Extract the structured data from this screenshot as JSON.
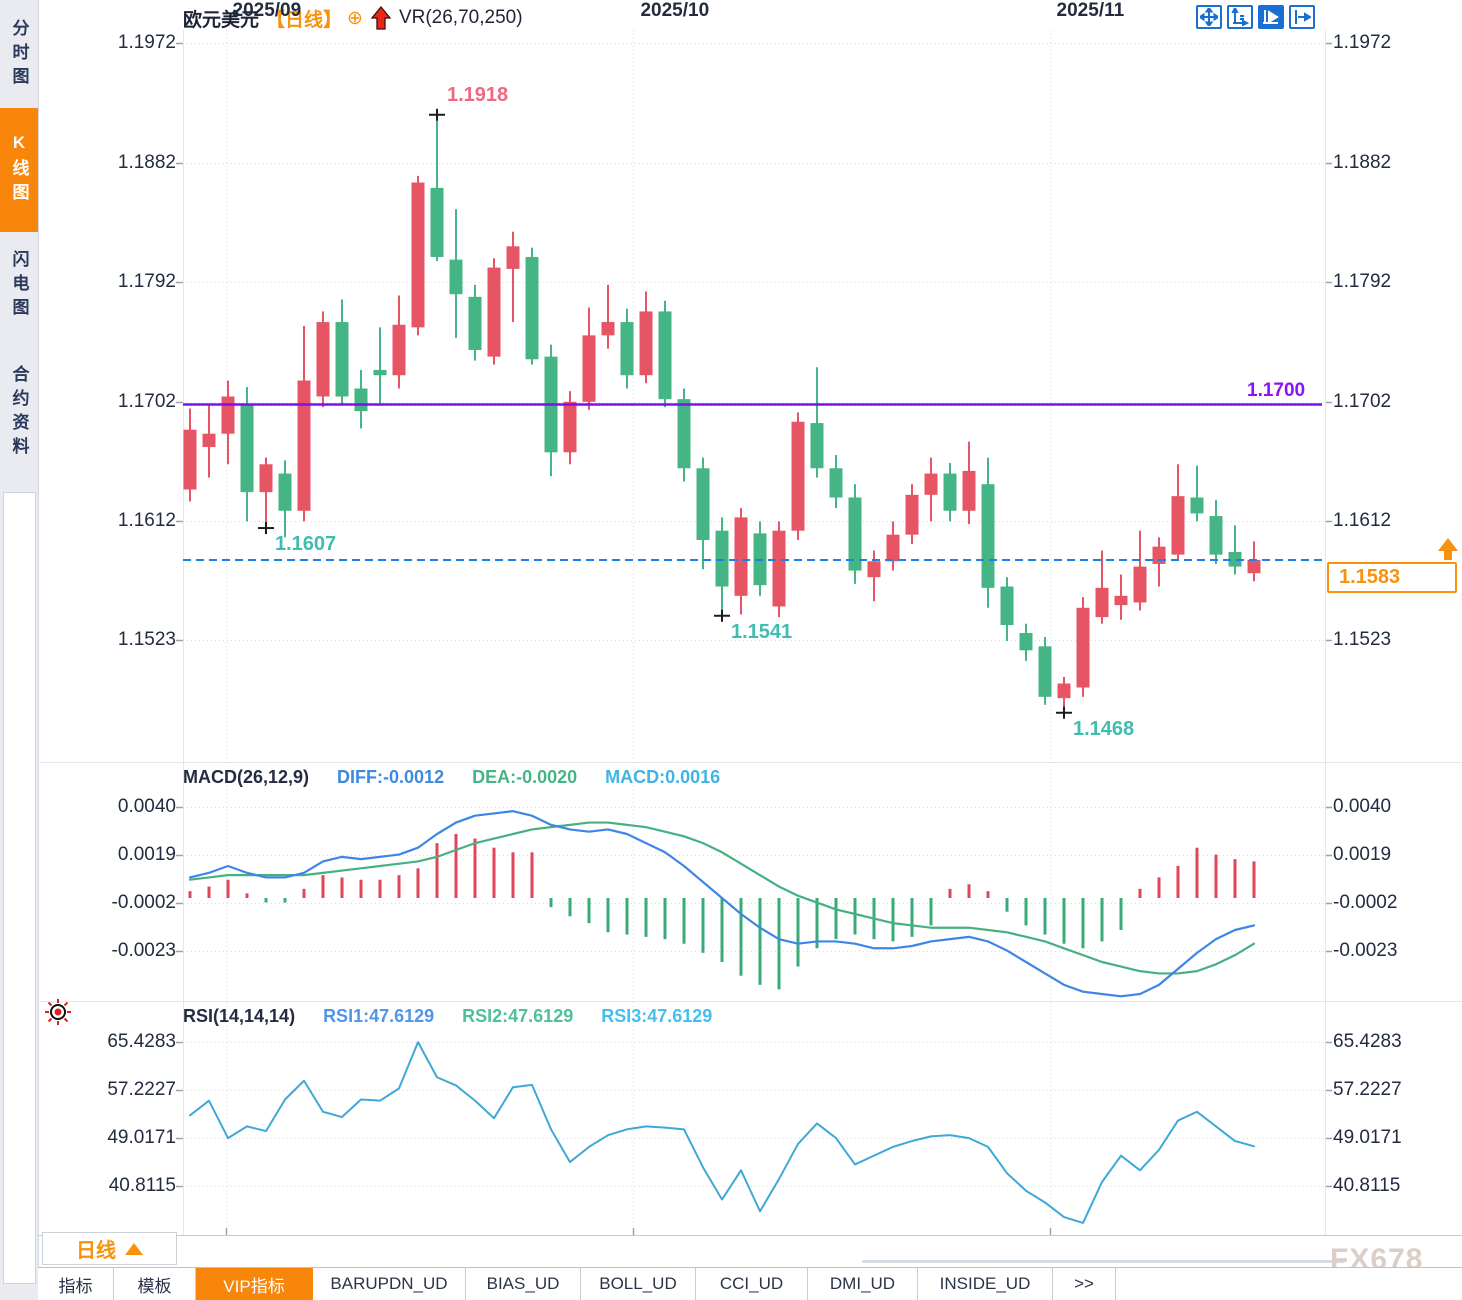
{
  "header": {
    "symbol": "欧元美元",
    "period_tag": "【日线】",
    "plus_icon": "⊕",
    "indicator": "VR(26,70,250)"
  },
  "sidebar": {
    "items": [
      {
        "label": "分时图",
        "active": false
      },
      {
        "label": "K线图",
        "active": true
      },
      {
        "label": "闪电图",
        "active": false
      },
      {
        "label": "合约资料",
        "active": false
      }
    ]
  },
  "toolbar_icons": [
    {
      "name": "pan-crosshair-icon",
      "active": false
    },
    {
      "name": "axis-scale-icon",
      "active": false
    },
    {
      "name": "auto-follow-icon",
      "active": true
    },
    {
      "name": "shift-right-icon",
      "active": false
    }
  ],
  "main_chart": {
    "hline_label": "1.1700",
    "current_price": "1.1583"
  },
  "macd": {
    "title": "MACD(26,12,9)",
    "diff_label": "DIFF:-0.0012",
    "dea_label": "DEA:-0.0020",
    "macd_label": "MACD:0.0016"
  },
  "rsi": {
    "title": "RSI(14,14,14)",
    "rsi1_label": "RSI1:47.6129",
    "rsi2_label": "RSI2:47.6129",
    "rsi3_label": "RSI3:47.6129"
  },
  "period_selector": {
    "label": "日线"
  },
  "bottom_tabs": [
    {
      "label": "指标",
      "active": false
    },
    {
      "label": "模板",
      "active": false
    },
    {
      "label": "VIP指标",
      "active": true
    },
    {
      "label": "BARUPDN_UD",
      "active": false
    },
    {
      "label": "BIAS_UD",
      "active": false
    },
    {
      "label": "BOLL_UD",
      "active": false
    },
    {
      "label": "CCI_UD",
      "active": false
    },
    {
      "label": "DMI_UD",
      "active": false
    },
    {
      "label": "INSIDE_UD",
      "active": false
    },
    {
      "label": ">>",
      "active": false
    }
  ],
  "watermark": "FX678",
  "colors": {
    "up": "#e75565",
    "down": "#45b585",
    "hline": "#7e0ef2",
    "dashed": "#1d80e8",
    "accent": "#f8920c",
    "diff_line": "#3d86e8",
    "dea_line": "#46b080",
    "rsi_line": "#3fa8d8",
    "annotation_low": "#3fbdb0",
    "annotation_high": "#f0687e",
    "grid": "#d8dce3"
  },
  "chart_data": {
    "type": "candlestick",
    "title": "欧元美元 日线 (EUR/USD daily)",
    "panes": [
      "price",
      "MACD",
      "RSI"
    ],
    "price_ticks": [
      1.1972,
      1.1882,
      1.1792,
      1.1702,
      1.1612,
      1.1523
    ],
    "macd_ticks": [
      0.004,
      0.0019,
      -0.0002,
      -0.0023
    ],
    "rsi_ticks": [
      65.4283,
      57.2227,
      49.0171,
      40.8115
    ],
    "x_ticks": [
      {
        "label": "2025/09",
        "i": 1.87
      },
      {
        "label": "2025/10",
        "i": 23.34
      },
      {
        "label": "2025/11",
        "i": 45.24
      }
    ],
    "hline_value": 1.17,
    "dashed_value": 1.1583,
    "annotations": [
      {
        "text": "1.1918",
        "price": 1.1918,
        "index": 13,
        "kind": "high"
      },
      {
        "text": "1.1607",
        "price": 1.1607,
        "index": 4,
        "kind": "low"
      },
      {
        "text": "1.1541",
        "price": 1.1541,
        "index": 28,
        "kind": "low"
      },
      {
        "text": "1.1468",
        "price": 1.1468,
        "index": 46,
        "kind": "low"
      }
    ],
    "candles": [
      [
        1.1636,
        1.1697,
        1.1627,
        1.1681
      ],
      [
        1.1668,
        1.17,
        1.1645,
        1.1678
      ],
      [
        1.1678,
        1.1718,
        1.1655,
        1.1706
      ],
      [
        1.17,
        1.1713,
        1.1612,
        1.1634
      ],
      [
        1.1634,
        1.166,
        1.1607,
        1.1655
      ],
      [
        1.1648,
        1.1658,
        1.16,
        1.162
      ],
      [
        1.162,
        1.1759,
        1.1612,
        1.1718
      ],
      [
        1.1706,
        1.177,
        1.1698,
        1.1762
      ],
      [
        1.1762,
        1.1779,
        1.17,
        1.1706
      ],
      [
        1.1712,
        1.1726,
        1.1682,
        1.1695
      ],
      [
        1.1726,
        1.1758,
        1.17,
        1.1722
      ],
      [
        1.1722,
        1.1782,
        1.1712,
        1.176
      ],
      [
        1.1758,
        1.1872,
        1.1752,
        1.1867
      ],
      [
        1.1863,
        1.1918,
        1.1808,
        1.1811
      ],
      [
        1.1809,
        1.1847,
        1.175,
        1.1783
      ],
      [
        1.1781,
        1.179,
        1.1733,
        1.1741
      ],
      [
        1.1736,
        1.181,
        1.173,
        1.1803
      ],
      [
        1.1802,
        1.183,
        1.1762,
        1.1819
      ],
      [
        1.1811,
        1.1818,
        1.173,
        1.1734
      ],
      [
        1.1736,
        1.1745,
        1.1646,
        1.1664
      ],
      [
        1.1664,
        1.171,
        1.1655,
        1.1702
      ],
      [
        1.1702,
        1.1773,
        1.1696,
        1.1752
      ],
      [
        1.1752,
        1.179,
        1.1742,
        1.1762
      ],
      [
        1.1762,
        1.1772,
        1.1712,
        1.1722
      ],
      [
        1.1722,
        1.1785,
        1.1716,
        1.177
      ],
      [
        1.177,
        1.1778,
        1.1698,
        1.1704
      ],
      [
        1.1704,
        1.1712,
        1.1642,
        1.1652
      ],
      [
        1.1652,
        1.166,
        1.1576,
        1.1598
      ],
      [
        1.1605,
        1.1615,
        1.1541,
        1.1563
      ],
      [
        1.1556,
        1.1622,
        1.1542,
        1.1615
      ],
      [
        1.1603,
        1.1612,
        1.1556,
        1.1564
      ],
      [
        1.1548,
        1.1612,
        1.154,
        1.1605
      ],
      [
        1.1605,
        1.1694,
        1.1598,
        1.1687
      ],
      [
        1.1686,
        1.1728,
        1.1645,
        1.1652
      ],
      [
        1.1652,
        1.1662,
        1.1622,
        1.163
      ],
      [
        1.163,
        1.164,
        1.1565,
        1.1575
      ],
      [
        1.157,
        1.159,
        1.1552,
        1.1582
      ],
      [
        1.1582,
        1.1612,
        1.1575,
        1.1602
      ],
      [
        1.1602,
        1.164,
        1.1595,
        1.1632
      ],
      [
        1.1632,
        1.166,
        1.1612,
        1.1648
      ],
      [
        1.1648,
        1.1656,
        1.1612,
        1.162
      ],
      [
        1.162,
        1.1672,
        1.161,
        1.165
      ],
      [
        1.164,
        1.166,
        1.1547,
        1.1562
      ],
      [
        1.1563,
        1.157,
        1.1522,
        1.1534
      ],
      [
        1.1528,
        1.1535,
        1.1507,
        1.1515
      ],
      [
        1.1518,
        1.1525,
        1.1474,
        1.148
      ],
      [
        1.1479,
        1.1495,
        1.1468,
        1.149
      ],
      [
        1.1487,
        1.1555,
        1.148,
        1.1547
      ],
      [
        1.154,
        1.159,
        1.1535,
        1.1562
      ],
      [
        1.1549,
        1.1572,
        1.1538,
        1.1556
      ],
      [
        1.1551,
        1.1605,
        1.1545,
        1.1578
      ],
      [
        1.158,
        1.16,
        1.1563,
        1.1593
      ],
      [
        1.1587,
        1.1655,
        1.1583,
        1.1631
      ],
      [
        1.163,
        1.1654,
        1.1612,
        1.1618
      ],
      [
        1.1616,
        1.1628,
        1.158,
        1.1587
      ],
      [
        1.1589,
        1.1609,
        1.1572,
        1.1578
      ],
      [
        1.1573,
        1.1597,
        1.1567,
        1.1583
      ]
    ],
    "macd_hist": [
      0.0003,
      0.0005,
      0.0008,
      0.0002,
      -0.0002,
      -0.0002,
      0.0004,
      0.001,
      0.0009,
      0.0008,
      0.0008,
      0.001,
      0.0013,
      0.0024,
      0.0028,
      0.0026,
      0.0022,
      0.002,
      0.002,
      -0.0004,
      -0.0008,
      -0.0011,
      -0.0015,
      -0.0016,
      -0.0017,
      -0.0018,
      -0.002,
      -0.0024,
      -0.0028,
      -0.0034,
      -0.0038,
      -0.004,
      -0.003,
      -0.0022,
      -0.0018,
      -0.0016,
      -0.0018,
      -0.0019,
      -0.0017,
      -0.0012,
      0.0004,
      0.0006,
      0.0003,
      -0.0006,
      -0.0012,
      -0.0016,
      -0.002,
      -0.0022,
      -0.0019,
      -0.0014,
      0.0004,
      0.0009,
      0.0014,
      0.0022,
      0.0019,
      0.0017,
      0.0016
    ],
    "diff": [
      0.0009,
      0.0011,
      0.0014,
      0.0011,
      0.0009,
      0.0009,
      0.0011,
      0.0016,
      0.0018,
      0.0017,
      0.0018,
      0.0019,
      0.0022,
      0.0028,
      0.0033,
      0.0036,
      0.0037,
      0.0038,
      0.0036,
      0.0032,
      0.003,
      0.0029,
      0.003,
      0.0028,
      0.0024,
      0.002,
      0.0014,
      0.0007,
      0.0,
      -0.0007,
      -0.0013,
      -0.0018,
      -0.002,
      -0.0019,
      -0.0019,
      -0.002,
      -0.0022,
      -0.0022,
      -0.0021,
      -0.0019,
      -0.0018,
      -0.0017,
      -0.0019,
      -0.0023,
      -0.0028,
      -0.0033,
      -0.0038,
      -0.0041,
      -0.0042,
      -0.0043,
      -0.0042,
      -0.0038,
      -0.0031,
      -0.0024,
      -0.0018,
      -0.0014,
      -0.0012
    ],
    "dea": [
      0.0008,
      0.0009,
      0.001,
      0.001,
      0.001,
      0.001,
      0.001,
      0.0011,
      0.0012,
      0.0013,
      0.0014,
      0.0015,
      0.0016,
      0.0018,
      0.0021,
      0.0024,
      0.0026,
      0.0028,
      0.003,
      0.0031,
      0.0032,
      0.0033,
      0.0033,
      0.0032,
      0.0031,
      0.0029,
      0.0027,
      0.0024,
      0.002,
      0.0015,
      0.001,
      0.0005,
      0.0001,
      -0.0002,
      -0.0005,
      -0.0007,
      -0.0009,
      -0.0011,
      -0.0012,
      -0.0013,
      -0.0013,
      -0.0013,
      -0.0014,
      -0.0015,
      -0.0017,
      -0.0019,
      -0.0022,
      -0.0025,
      -0.0028,
      -0.003,
      -0.0032,
      -0.0033,
      -0.0033,
      -0.0032,
      -0.0029,
      -0.0025,
      -0.002
    ],
    "rsi": [
      52.9,
      55.4,
      49.0,
      51.0,
      50.2,
      55.6,
      58.8,
      53.5,
      52.6,
      55.6,
      55.4,
      57.5,
      65.4,
      59.4,
      58.0,
      55.4,
      52.4,
      57.7,
      58.1,
      50.5,
      44.9,
      47.5,
      49.5,
      50.5,
      51.0,
      50.8,
      50.5,
      44.0,
      38.5,
      43.5,
      36.5,
      42.0,
      48.0,
      51.5,
      49.0,
      44.5,
      46.0,
      47.5,
      48.5,
      49.3,
      49.5,
      49.0,
      47.5,
      43.0,
      40.0,
      38.0,
      35.5,
      34.5,
      41.5,
      46.0,
      43.5,
      47.0,
      52.0,
      53.5,
      51.0,
      48.5,
      47.6
    ]
  }
}
